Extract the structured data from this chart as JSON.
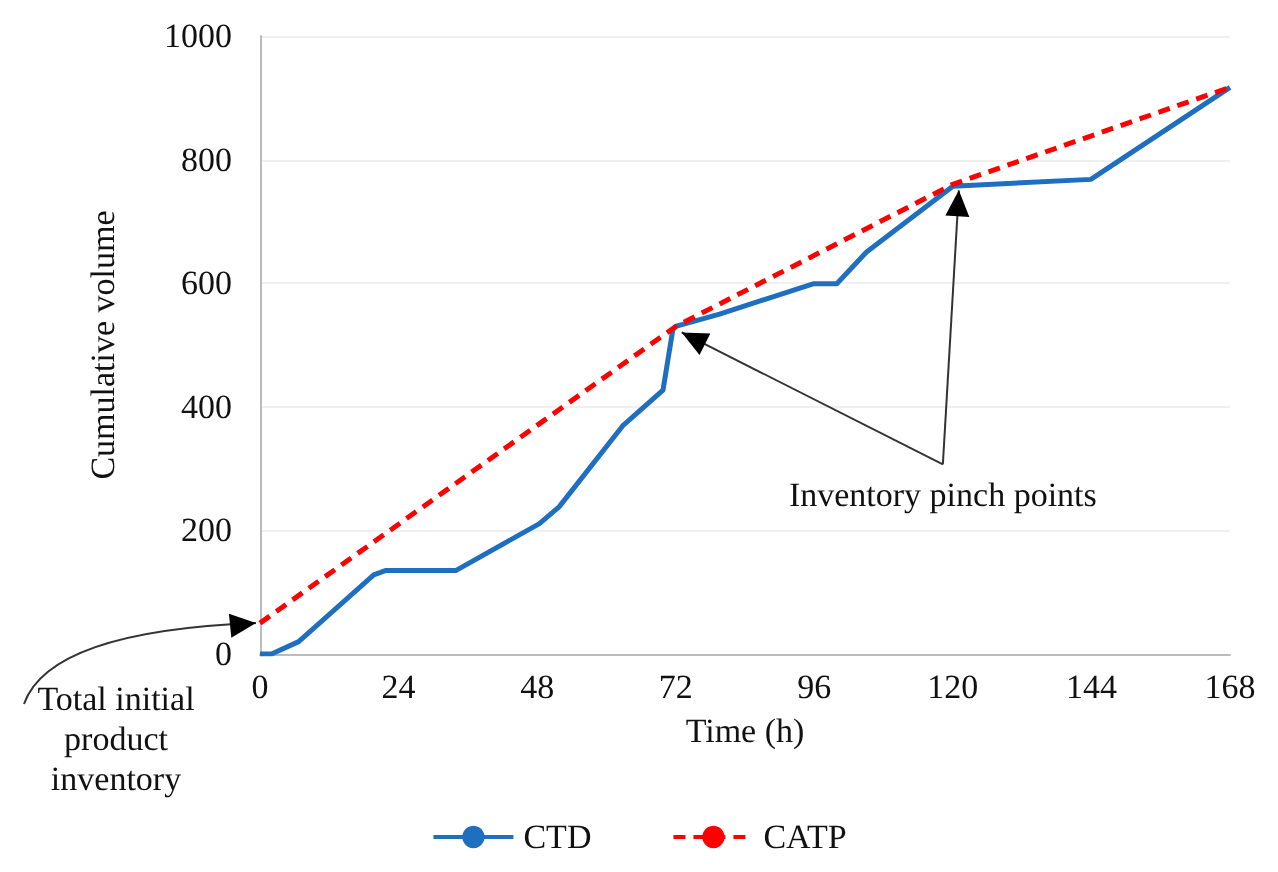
{
  "chart_data": {
    "type": "line",
    "xlabel": "Time (h)",
    "ylabel": "Cumulative volume",
    "xlim": [
      0,
      168
    ],
    "xticks": [
      0,
      24,
      48,
      72,
      96,
      120,
      144,
      168
    ],
    "ylim": [
      0,
      1000
    ],
    "yticks": [
      0,
      200,
      400,
      600,
      800,
      1000
    ],
    "grid": "y",
    "legend": "bottom",
    "marker": "none",
    "series": [
      {
        "name": "CTD",
        "color": "#1f6fc0",
        "line_style": "solid",
        "x": [
          0,
          2,
          6.7,
          19.7,
          21.7,
          33.9,
          48.4,
          51.8,
          62.8,
          69.8,
          71.5,
          72,
          79.6,
          95.8,
          99.9,
          105,
          120,
          143.9,
          168
        ],
        "values": [
          0,
          0,
          20,
          128,
          135,
          135,
          211,
          238,
          369,
          427,
          525,
          530,
          550,
          599,
          599,
          650,
          757,
          768,
          917
        ]
      },
      {
        "name": "CATP",
        "color": "#ff0000",
        "line_style": "dashed",
        "x": [
          0,
          72,
          120,
          168
        ],
        "values": [
          50,
          530,
          760,
          917
        ]
      }
    ],
    "annotations": [
      {
        "text": "Inventory pinch points",
        "x": 120,
        "y": 760
      },
      {
        "text": "Total initial product inventory",
        "x": 0,
        "y": 50
      }
    ]
  }
}
